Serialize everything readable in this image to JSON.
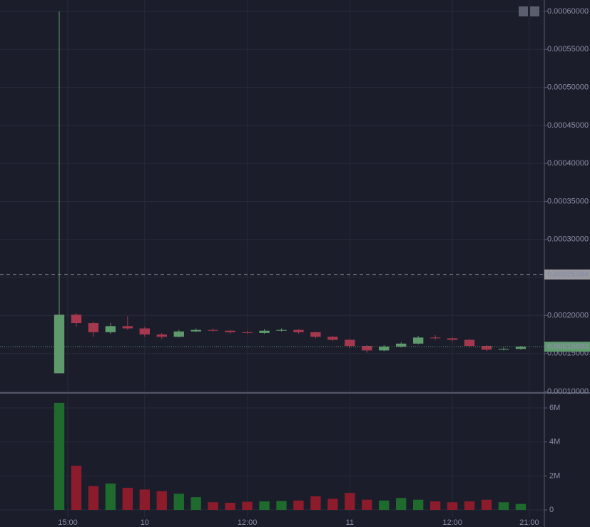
{
  "chart_data": {
    "type": "candlestick",
    "x": [
      -1,
      1,
      3,
      5,
      7,
      9,
      11,
      13,
      15,
      17,
      19,
      21,
      23,
      25,
      27,
      29,
      31,
      33,
      35,
      37,
      39,
      41,
      43,
      45,
      47,
      49,
      51,
      53
    ],
    "open": [
      0.000124,
      0.000201,
      0.00019,
      0.000178,
      0.000186,
      0.000183,
      0.000175,
      0.000172,
      0.000179,
      0.000181,
      0.00018,
      0.000178,
      0.000177,
      0.00018,
      0.000181,
      0.000178,
      0.000172,
      0.000168,
      0.00016,
      0.000154,
      0.000159,
      0.000163,
      0.000171,
      0.00017,
      0.000168,
      0.00016,
      0.000155,
      0.000156
    ],
    "high": [
      0.0006,
      0.000203,
      0.000192,
      0.00019,
      0.000199,
      0.000185,
      0.000177,
      0.000181,
      0.000183,
      0.000183,
      0.000181,
      0.00018,
      0.000182,
      0.000183,
      0.000182,
      0.000179,
      0.000173,
      0.000169,
      0.000161,
      0.000161,
      0.000165,
      0.000173,
      0.000174,
      0.000171,
      0.000169,
      0.000161,
      0.000158,
      0.00016
    ],
    "low": [
      0.000124,
      0.000185,
      0.000172,
      0.000176,
      0.000181,
      0.000172,
      0.000169,
      0.000171,
      0.000178,
      0.000178,
      0.000176,
      0.000176,
      0.000176,
      0.000179,
      0.000176,
      0.00017,
      0.000166,
      0.000157,
      0.000151,
      0.000153,
      0.000158,
      0.000162,
      0.000168,
      0.000166,
      0.000158,
      0.000153,
      0.000154,
      0.000155
    ],
    "close": [
      0.000201,
      0.00019,
      0.000178,
      0.000186,
      0.000183,
      0.000175,
      0.000172,
      0.000179,
      0.000181,
      0.00018,
      0.000178,
      0.000177,
      0.00018,
      0.000181,
      0.000178,
      0.000172,
      0.000168,
      0.00016,
      0.000154,
      0.000159,
      0.000163,
      0.000171,
      0.00017,
      0.000168,
      0.00016,
      0.000155,
      0.000156,
      0.000159
    ],
    "volume": [
      6300000,
      2600000,
      1400000,
      1550000,
      1300000,
      1200000,
      1100000,
      950000,
      750000,
      450000,
      420000,
      480000,
      500000,
      520000,
      550000,
      800000,
      650000,
      1000000,
      600000,
      550000,
      700000,
      600000,
      500000,
      450000,
      500000,
      600000,
      450000,
      350000
    ],
    "up_color": "#5f9a6c",
    "down_color": "#a5384e",
    "volume_up_color": "#1f6a2d",
    "volume_down_color": "#8c1b2c",
    "xlim": [
      -7.93,
      55.76
    ],
    "xticks": [
      {
        "value": 0,
        "label": "15:00"
      },
      {
        "value": 9,
        "label": "10"
      },
      {
        "value": 21,
        "label": "12:00"
      },
      {
        "value": 33,
        "label": "11"
      },
      {
        "value": 45,
        "label": "12:00"
      },
      {
        "value": 54,
        "label": "21:00"
      }
    ],
    "ylim": [
      0.0001,
      0.000615
    ],
    "yticks": [
      {
        "value": 0.0001,
        "label": "0.00010000"
      },
      {
        "value": 0.00015,
        "label": "0.00015000"
      },
      {
        "value": 0.0002,
        "label": "0.00020000"
      },
      {
        "value": 0.00025,
        "label": "0.00025000"
      },
      {
        "value": 0.0003,
        "label": "0.00030000"
      },
      {
        "value": 0.00035,
        "label": "0.00035000"
      },
      {
        "value": 0.0004,
        "label": "0.00040000"
      },
      {
        "value": 0.00045,
        "label": "0.00045000"
      },
      {
        "value": 0.0005,
        "label": "0.00050000"
      },
      {
        "value": 0.00055,
        "label": "0.00055000"
      },
      {
        "value": 0.0006,
        "label": "0.00060000"
      }
    ],
    "volume_ylim": [
      0,
      6800000
    ],
    "volume_yticks": [
      0,
      {
        "value": 2000000,
        "label": "2M"
      },
      {
        "value": 4000000,
        "label": "4M"
      },
      {
        "value": 6000000,
        "label": "6M"
      }
    ],
    "price_lines": [
      {
        "value": 0.00025394,
        "color": "#9a9aa0",
        "style": "dashed"
      },
      {
        "value": 0.00015893,
        "color": "#5f9a6c",
        "style": "dotted"
      }
    ],
    "grid": true
  }
}
